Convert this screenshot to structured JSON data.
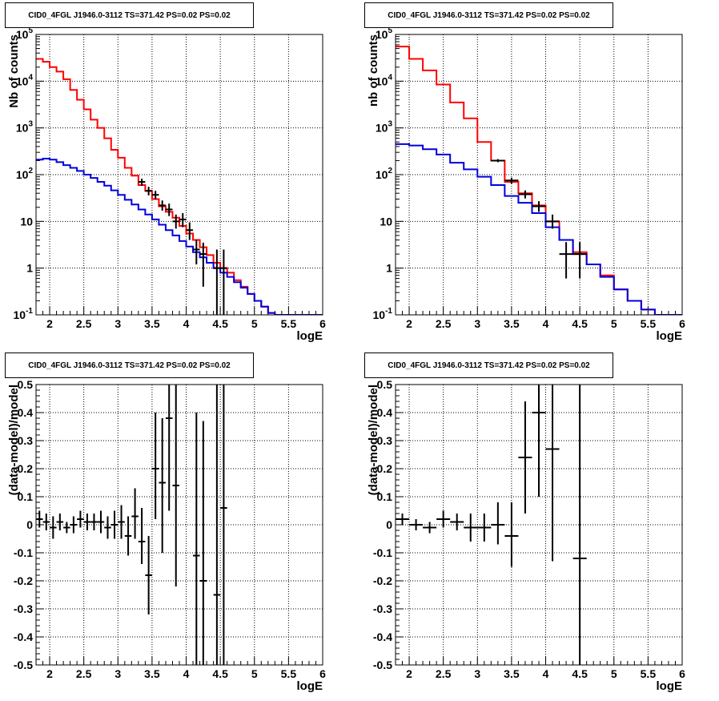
{
  "pads": [
    {
      "title": "CID0_4FGL J1946.0-3112 TS=371.42 PS=0.02 PS=0.02",
      "xlabel": "logE",
      "ylabel": "Nb of counts"
    },
    {
      "title": "CID0_4FGL J1946.0-3112 TS=371.42 PS=0.02 PS=0.02",
      "xlabel": "logE",
      "ylabel": "nb of counts"
    },
    {
      "title": "CID0_4FGL J1946.0-3112 TS=371.42 PS=0.02 PS=0.02",
      "xlabel": "logE",
      "ylabel": "(data-model)/model"
    },
    {
      "title": "CID0_4FGL J1946.0-3112 TS=371.42 PS=0.02 PS=0.02",
      "xlabel": "logE",
      "ylabel": "(data-model)/model"
    }
  ],
  "chart_data": [
    {
      "type": "line",
      "title": "CID0_4FGL J1946.0-3112 TS=371.42 PS=0.02 PS=0.02",
      "xlabel": "logE",
      "ylabel": "Nb of counts",
      "xlim": [
        1.8,
        6
      ],
      "ylim": [
        0.1,
        100000
      ],
      "yscale": "log",
      "grid": true,
      "x_ticks": [
        "2",
        "2.5",
        "3",
        "3.5",
        "4",
        "4.5",
        "5",
        "5.5",
        "6"
      ],
      "y_ticks": [
        "10^-1",
        "1",
        "10",
        "10^2",
        "10^3",
        "10^4",
        "10^5"
      ],
      "series": [
        {
          "color": "#ff0000",
          "style": "step",
          "bin_edges": [
            1.8,
            1.9,
            2.0,
            2.1,
            2.2,
            2.3,
            2.4,
            2.5,
            2.6,
            2.7,
            2.8,
            2.9,
            3.0,
            3.1,
            3.2,
            3.3,
            3.4,
            3.5,
            3.6,
            3.7,
            3.8,
            3.9,
            4.0,
            4.1,
            4.2,
            4.3,
            4.4,
            4.5,
            4.6,
            4.7,
            4.8,
            4.9,
            5.0,
            5.1,
            5.2,
            5.3,
            5.4,
            5.5,
            5.6,
            5.7,
            5.8,
            5.9,
            6.0
          ],
          "values": [
            30000,
            26000,
            20000,
            16000,
            11000,
            6500,
            4000,
            2500,
            1500,
            1000,
            600,
            340,
            230,
            140,
            95,
            60,
            45,
            30,
            21,
            16,
            12,
            8,
            5.5,
            4.0,
            2.8,
            1.9,
            1.3,
            1.0,
            0.8,
            0.55,
            0.4,
            0.28,
            0.2,
            0.15,
            0.11,
            0.1,
            0.1,
            0.1,
            0.1,
            0.1,
            0.1,
            0.1
          ]
        },
        {
          "color": "#0000dd",
          "style": "step",
          "bin_edges": [
            1.8,
            1.9,
            2.0,
            2.1,
            2.2,
            2.3,
            2.4,
            2.5,
            2.6,
            2.7,
            2.8,
            2.9,
            3.0,
            3.1,
            3.2,
            3.3,
            3.4,
            3.5,
            3.6,
            3.7,
            3.8,
            3.9,
            4.0,
            4.1,
            4.2,
            4.3,
            4.4,
            4.5,
            4.6,
            4.7,
            4.8,
            4.9,
            5.0,
            5.1,
            5.2,
            5.3,
            5.4,
            5.5,
            5.6,
            5.7,
            5.8,
            5.9,
            6.0
          ],
          "values": [
            210,
            220,
            210,
            185,
            160,
            140,
            120,
            100,
            85,
            70,
            58,
            46,
            37,
            29,
            23,
            18,
            14,
            11,
            8.5,
            6.5,
            5.0,
            3.8,
            2.9,
            2.2,
            1.7,
            1.3,
            1.0,
            0.8,
            0.65,
            0.5,
            0.38,
            0.28,
            0.2,
            0.15,
            0.11,
            0.1,
            0.1,
            0.1,
            0.1,
            0.1,
            0.1,
            0.1
          ]
        }
      ],
      "data_points": {
        "color": "#000000",
        "points": [
          {
            "x": 3.35,
            "y": 70,
            "xerr": 0.05,
            "ylo": 58,
            "yhi": 82
          },
          {
            "x": 3.45,
            "y": 45,
            "xerr": 0.05,
            "ylo": 36,
            "yhi": 55
          },
          {
            "x": 3.55,
            "y": 37,
            "xerr": 0.05,
            "ylo": 30,
            "yhi": 45
          },
          {
            "x": 3.65,
            "y": 22,
            "xerr": 0.05,
            "ylo": 17,
            "yhi": 28
          },
          {
            "x": 3.75,
            "y": 18,
            "xerr": 0.05,
            "ylo": 13,
            "yhi": 24
          },
          {
            "x": 3.85,
            "y": 10,
            "xerr": 0.05,
            "ylo": 7,
            "yhi": 14
          },
          {
            "x": 3.95,
            "y": 11,
            "xerr": 0.05,
            "ylo": 7.5,
            "yhi": 15
          },
          {
            "x": 4.05,
            "y": 6.5,
            "xerr": 0.05,
            "ylo": 4,
            "yhi": 9.5
          },
          {
            "x": 4.15,
            "y": 2.5,
            "xerr": 0.05,
            "ylo": 1.2,
            "yhi": 4.0
          },
          {
            "x": 4.25,
            "y": 2.0,
            "xerr": 0.05,
            "ylo": 0.4,
            "yhi": 3.5
          },
          {
            "x": 4.45,
            "y": 1.0,
            "xerr": 0.05,
            "ylo": 0.1,
            "yhi": 2.5
          },
          {
            "x": 4.55,
            "y": 1.0,
            "xerr": 0.05,
            "ylo": 0.1,
            "yhi": 2.5
          }
        ]
      }
    },
    {
      "type": "line",
      "title": "CID0_4FGL J1946.0-3112 TS=371.42 PS=0.02 PS=0.02",
      "xlabel": "logE",
      "ylabel": "nb of counts",
      "xlim": [
        1.8,
        6
      ],
      "ylim": [
        0.1,
        100000
      ],
      "yscale": "log",
      "grid": true,
      "x_ticks": [
        "2",
        "2.5",
        "3",
        "3.5",
        "4",
        "4.5",
        "5",
        "5.5",
        "6"
      ],
      "y_ticks": [
        "10^-1",
        "1",
        "10",
        "10^2",
        "10^3",
        "10^4",
        "10^5"
      ],
      "series": [
        {
          "color": "#ff0000",
          "style": "step",
          "bin_edges": [
            1.8,
            2.0,
            2.2,
            2.4,
            2.6,
            2.8,
            3.0,
            3.2,
            3.4,
            3.6,
            3.8,
            4.0,
            4.2,
            4.4,
            4.6,
            4.8,
            5.0,
            5.2,
            5.4,
            5.6,
            5.8,
            6.0
          ],
          "values": [
            55000,
            30000,
            17000,
            8500,
            3500,
            1600,
            500,
            200,
            70,
            40,
            22,
            10,
            4.0,
            2.2,
            1.2,
            0.7,
            0.35,
            0.2,
            0.13,
            0.1,
            0.1
          ]
        },
        {
          "color": "#0000dd",
          "style": "step",
          "bin_edges": [
            1.8,
            2.0,
            2.2,
            2.4,
            2.6,
            2.8,
            3.0,
            3.2,
            3.4,
            3.6,
            3.8,
            4.0,
            4.2,
            4.4,
            4.6,
            4.8,
            5.0,
            5.2,
            5.4,
            5.6,
            5.8,
            6.0
          ],
          "values": [
            450,
            420,
            350,
            270,
            180,
            130,
            90,
            60,
            35,
            25,
            15,
            7.5,
            4.0,
            2.0,
            1.2,
            0.65,
            0.35,
            0.2,
            0.13,
            0.1,
            0.1
          ]
        }
      ],
      "data_points": {
        "color": "#000000",
        "points": [
          {
            "x": 3.3,
            "y": 200,
            "xerr": 0.1,
            "ylo": 185,
            "yhi": 215
          },
          {
            "x": 3.5,
            "y": 75,
            "xerr": 0.1,
            "ylo": 64,
            "yhi": 86
          },
          {
            "x": 3.7,
            "y": 38,
            "xerr": 0.1,
            "ylo": 31,
            "yhi": 46
          },
          {
            "x": 3.9,
            "y": 21,
            "xerr": 0.1,
            "ylo": 16,
            "yhi": 27
          },
          {
            "x": 4.1,
            "y": 10,
            "xerr": 0.1,
            "ylo": 7,
            "yhi": 14
          },
          {
            "x": 4.3,
            "y": 2.0,
            "xerr": 0.1,
            "ylo": 0.6,
            "yhi": 3.6
          },
          {
            "x": 4.5,
            "y": 2.0,
            "xerr": 0.1,
            "ylo": 0.6,
            "yhi": 3.6
          }
        ]
      }
    },
    {
      "type": "scatter",
      "title": "CID0_4FGL J1946.0-3112 TS=371.42 PS=0.02 PS=0.02",
      "xlabel": "logE",
      "ylabel": "(data-model)/model",
      "xlim": [
        1.8,
        6
      ],
      "ylim": [
        -0.5,
        0.5
      ],
      "grid": true,
      "x_ticks": [
        "2",
        "2.5",
        "3",
        "3.5",
        "4",
        "4.5",
        "5",
        "5.5",
        "6"
      ],
      "y_ticks": [
        "-0.5",
        "-0.4",
        "-0.3",
        "-0.2",
        "-0.1",
        "0",
        "0.1",
        "0.2",
        "0.3",
        "0.4",
        "0.5"
      ],
      "data_points": {
        "color": "#000000",
        "points": [
          {
            "x": 1.85,
            "y": 0.02,
            "xerr": 0.05,
            "ylo": -0.01,
            "yhi": 0.05
          },
          {
            "x": 1.95,
            "y": 0.01,
            "xerr": 0.05,
            "ylo": -0.02,
            "yhi": 0.04
          },
          {
            "x": 2.05,
            "y": -0.01,
            "xerr": 0.05,
            "ylo": -0.05,
            "yhi": 0.03
          },
          {
            "x": 2.15,
            "y": 0.01,
            "xerr": 0.05,
            "ylo": -0.02,
            "yhi": 0.04
          },
          {
            "x": 2.25,
            "y": -0.01,
            "xerr": 0.05,
            "ylo": -0.03,
            "yhi": 0.01
          },
          {
            "x": 2.35,
            "y": 0.0,
            "xerr": 0.05,
            "ylo": -0.03,
            "yhi": 0.03
          },
          {
            "x": 2.45,
            "y": 0.02,
            "xerr": 0.05,
            "ylo": -0.01,
            "yhi": 0.05
          },
          {
            "x": 2.55,
            "y": 0.01,
            "xerr": 0.05,
            "ylo": -0.02,
            "yhi": 0.04
          },
          {
            "x": 2.65,
            "y": 0.01,
            "xerr": 0.05,
            "ylo": -0.02,
            "yhi": 0.04
          },
          {
            "x": 2.75,
            "y": 0.01,
            "xerr": 0.05,
            "ylo": -0.03,
            "yhi": 0.05
          },
          {
            "x": 2.85,
            "y": -0.01,
            "xerr": 0.05,
            "ylo": -0.05,
            "yhi": 0.03
          },
          {
            "x": 2.95,
            "y": 0.0,
            "xerr": 0.05,
            "ylo": -0.05,
            "yhi": 0.05
          },
          {
            "x": 3.05,
            "y": 0.01,
            "xerr": 0.05,
            "ylo": -0.05,
            "yhi": 0.07
          },
          {
            "x": 3.15,
            "y": -0.04,
            "xerr": 0.05,
            "ylo": -0.11,
            "yhi": 0.03
          },
          {
            "x": 3.25,
            "y": 0.03,
            "xerr": 0.05,
            "ylo": -0.05,
            "yhi": 0.13
          },
          {
            "x": 3.35,
            "y": -0.06,
            "xerr": 0.05,
            "ylo": -0.14,
            "yhi": 0.06
          },
          {
            "x": 3.45,
            "y": -0.18,
            "xerr": 0.05,
            "ylo": -0.32,
            "yhi": -0.04
          },
          {
            "x": 3.55,
            "y": 0.2,
            "xerr": 0.05,
            "ylo": 0.02,
            "yhi": 0.4
          },
          {
            "x": 3.65,
            "y": 0.15,
            "xerr": 0.05,
            "ylo": -0.1,
            "yhi": 0.38
          },
          {
            "x": 3.75,
            "y": 0.38,
            "xerr": 0.05,
            "ylo": 0.05,
            "yhi": 0.5
          },
          {
            "x": 3.85,
            "y": 0.14,
            "xerr": 0.05,
            "ylo": -0.22,
            "yhi": 0.5
          },
          {
            "x": 4.15,
            "y": -0.11,
            "xerr": 0.05,
            "ylo": -0.5,
            "yhi": 0.4
          },
          {
            "x": 4.25,
            "y": -0.2,
            "xerr": 0.05,
            "ylo": -0.5,
            "yhi": 0.37
          },
          {
            "x": 4.45,
            "y": -0.25,
            "xerr": 0.05,
            "ylo": -0.5,
            "yhi": 0.5
          },
          {
            "x": 4.55,
            "y": 0.06,
            "xerr": 0.05,
            "ylo": -0.5,
            "yhi": 0.5
          }
        ]
      }
    },
    {
      "type": "scatter",
      "title": "CID0_4FGL J1946.0-3112 TS=371.42 PS=0.02 PS=0.02",
      "xlabel": "logE",
      "ylabel": "(data-model)/model",
      "xlim": [
        1.8,
        6
      ],
      "ylim": [
        -0.5,
        0.5
      ],
      "grid": true,
      "x_ticks": [
        "2",
        "2.5",
        "3",
        "3.5",
        "4",
        "4.5",
        "5",
        "5.5",
        "6"
      ],
      "y_ticks": [
        "-0.5",
        "-0.4",
        "-0.3",
        "-0.2",
        "-0.1",
        "0",
        "0.1",
        "0.2",
        "0.3",
        "0.4",
        "0.5"
      ],
      "data_points": {
        "color": "#000000",
        "points": [
          {
            "x": 1.9,
            "y": 0.02,
            "xerr": 0.1,
            "ylo": 0.0,
            "yhi": 0.04
          },
          {
            "x": 2.1,
            "y": 0.0,
            "xerr": 0.1,
            "ylo": -0.02,
            "yhi": 0.02
          },
          {
            "x": 2.3,
            "y": -0.01,
            "xerr": 0.1,
            "ylo": -0.03,
            "yhi": 0.01
          },
          {
            "x": 2.5,
            "y": 0.02,
            "xerr": 0.1,
            "ylo": -0.01,
            "yhi": 0.05
          },
          {
            "x": 2.7,
            "y": 0.01,
            "xerr": 0.1,
            "ylo": -0.02,
            "yhi": 0.04
          },
          {
            "x": 2.9,
            "y": -0.01,
            "xerr": 0.1,
            "ylo": -0.06,
            "yhi": 0.04
          },
          {
            "x": 3.1,
            "y": -0.01,
            "xerr": 0.1,
            "ylo": -0.06,
            "yhi": 0.04
          },
          {
            "x": 3.3,
            "y": 0.0,
            "xerr": 0.1,
            "ylo": -0.07,
            "yhi": 0.08
          },
          {
            "x": 3.5,
            "y": -0.04,
            "xerr": 0.1,
            "ylo": -0.15,
            "yhi": 0.08
          },
          {
            "x": 3.7,
            "y": 0.24,
            "xerr": 0.1,
            "ylo": 0.04,
            "yhi": 0.44
          },
          {
            "x": 3.9,
            "y": 0.4,
            "xerr": 0.1,
            "ylo": 0.1,
            "yhi": 0.5
          },
          {
            "x": 4.1,
            "y": 0.27,
            "xerr": 0.1,
            "ylo": -0.13,
            "yhi": 0.5
          },
          {
            "x": 4.5,
            "y": -0.12,
            "xerr": 0.1,
            "ylo": -0.5,
            "yhi": 0.5
          }
        ]
      }
    }
  ]
}
